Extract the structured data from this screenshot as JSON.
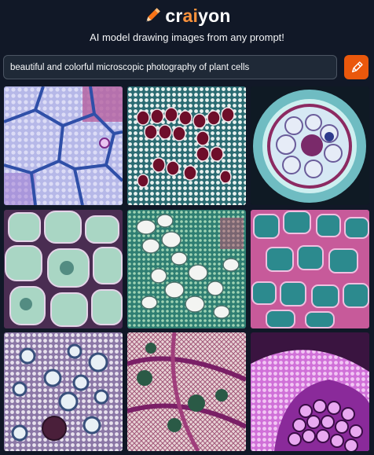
{
  "header": {
    "brand_prefix": "cr",
    "brand_accent": "ai",
    "brand_suffix": "yon",
    "tagline": "AI model drawing images from any prompt!"
  },
  "prompt": {
    "value": "beautiful and colorful microscopic photography of plant cells"
  },
  "draw_button": {
    "icon": "pencil-icon"
  },
  "colors": {
    "background": "#111827",
    "accent": "#ea580c",
    "input_bg": "#1f2937"
  },
  "images": [
    {
      "name": "image-1",
      "description": "purple-blue plant tissue with large cells"
    },
    {
      "name": "image-2",
      "description": "dark red cells on white mesh"
    },
    {
      "name": "image-3",
      "description": "circular stem cross section"
    },
    {
      "name": "image-4",
      "description": "teal rounded cells with purple walls"
    },
    {
      "name": "image-5",
      "description": "white cells on teal-green background"
    },
    {
      "name": "image-6",
      "description": "teal and pink block cells"
    },
    {
      "name": "image-7",
      "description": "blue-white round cells with dark nucleus"
    },
    {
      "name": "image-8",
      "description": "magenta lined tissue with green spots"
    },
    {
      "name": "image-9",
      "description": "magenta dome of cells"
    }
  ]
}
